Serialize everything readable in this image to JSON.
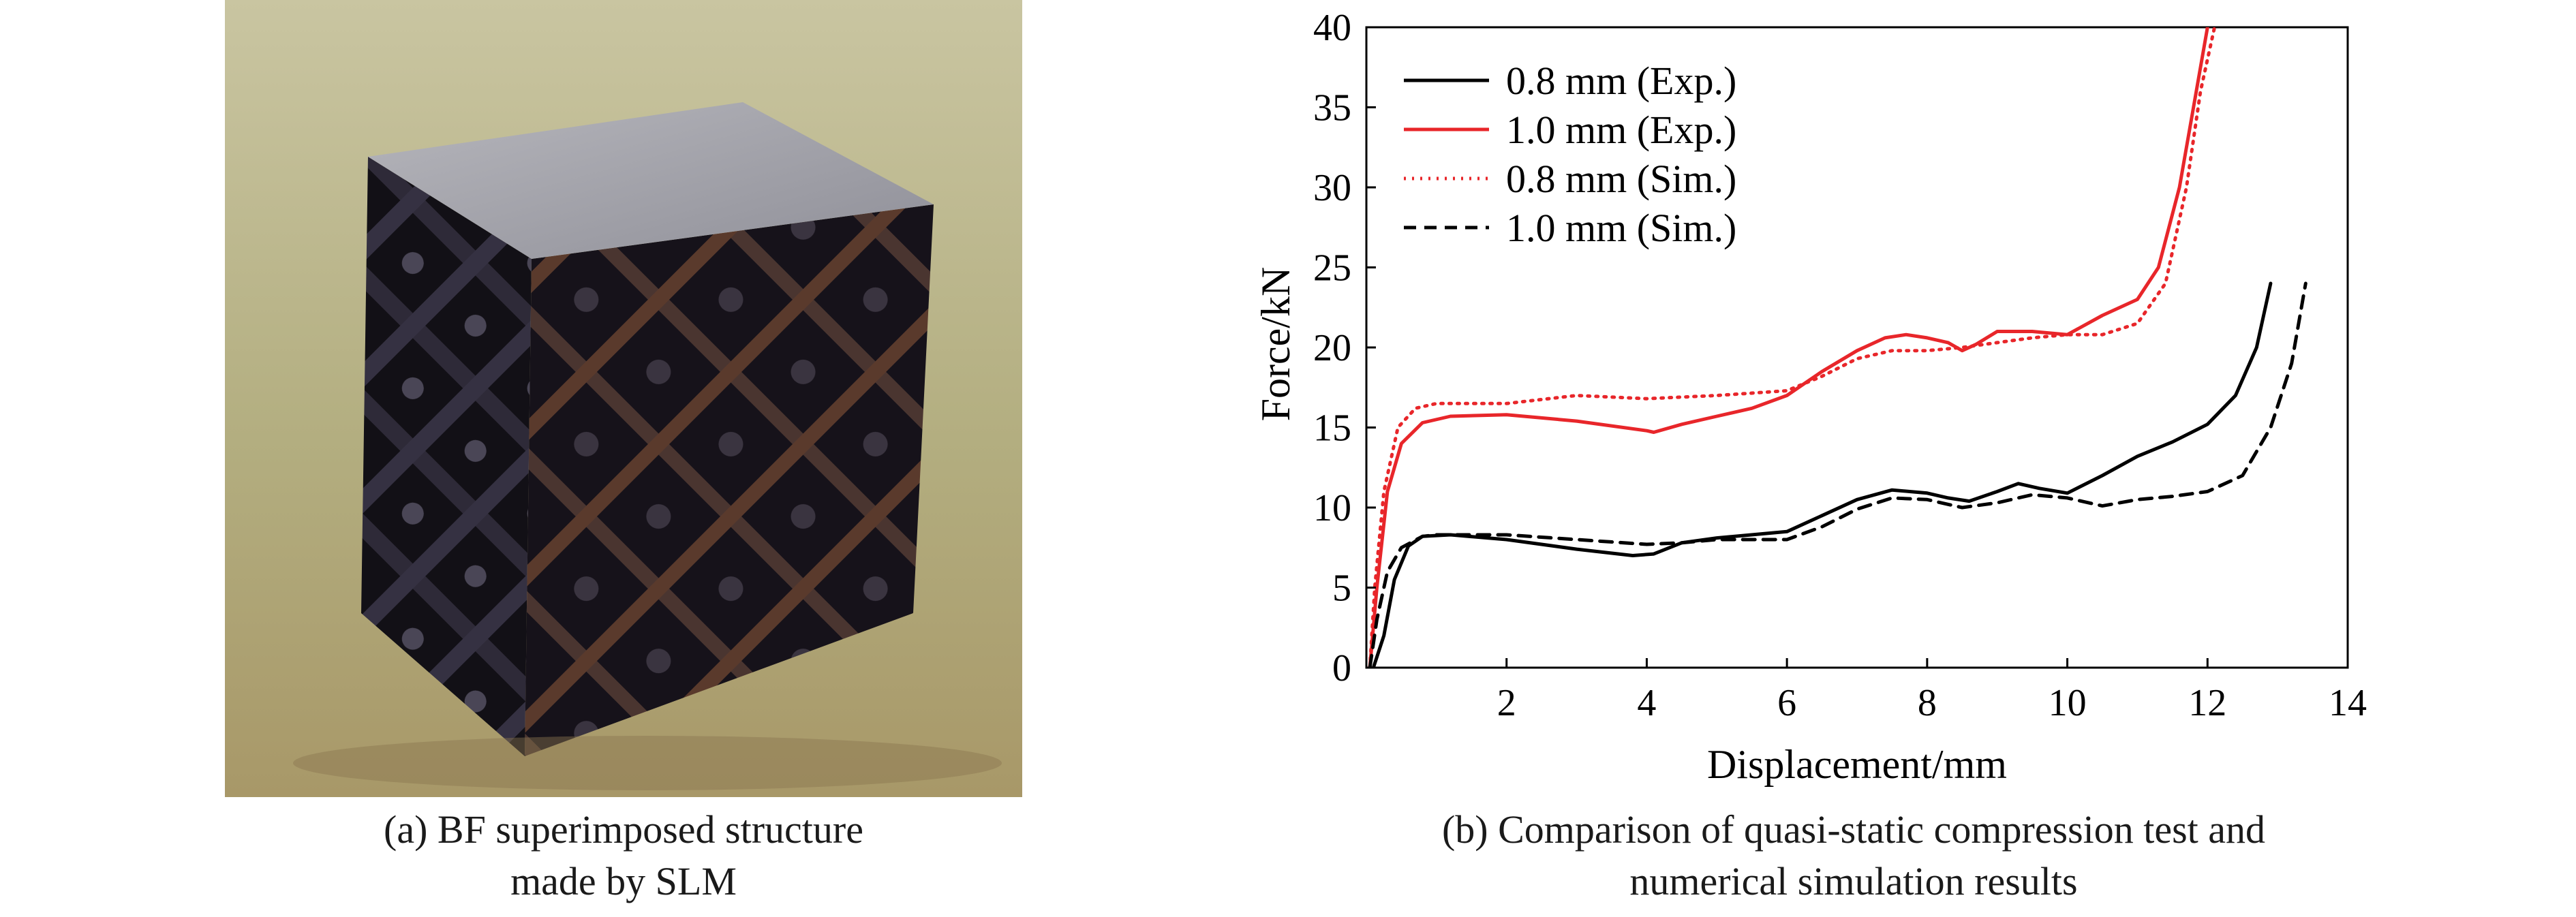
{
  "figure": {
    "caption_a_line1": "(a) BF superimposed structure",
    "caption_a_line2": "made by SLM",
    "caption_b_line1": "(b) Comparison of quasi-static compression test and",
    "caption_b_line2": "numerical simulation results"
  },
  "photo": {
    "subject": "lattice-cube-photo",
    "colors": {
      "background": "#b9b485",
      "metal": "#2b2630",
      "top_face": "#9e9ea6",
      "oxide": "#7a4a35"
    }
  },
  "chart_data": {
    "type": "line",
    "title": "",
    "xlabel": "Displacement/mm",
    "ylabel": "Force/kN",
    "xlim": [
      0,
      14
    ],
    "ylim": [
      0,
      40
    ],
    "xticks": [
      2,
      4,
      6,
      8,
      10,
      12,
      14
    ],
    "yticks": [
      0,
      5,
      10,
      15,
      20,
      25,
      30,
      35,
      40
    ],
    "grid": false,
    "legend_position": "top-left",
    "series": [
      {
        "name": "0.8 mm (Exp.)",
        "color": "#000000",
        "style": "solid",
        "points": [
          [
            0.1,
            0
          ],
          [
            0.25,
            2
          ],
          [
            0.4,
            5.5
          ],
          [
            0.6,
            7.6
          ],
          [
            0.8,
            8.2
          ],
          [
            1.2,
            8.3
          ],
          [
            2,
            8
          ],
          [
            3,
            7.4
          ],
          [
            3.8,
            7
          ],
          [
            4.1,
            7.1
          ],
          [
            4.5,
            7.8
          ],
          [
            5,
            8.1
          ],
          [
            6,
            8.5
          ],
          [
            6.5,
            9.5
          ],
          [
            7,
            10.5
          ],
          [
            7.5,
            11.1
          ],
          [
            8,
            10.9
          ],
          [
            8.3,
            10.6
          ],
          [
            8.6,
            10.4
          ],
          [
            9,
            11
          ],
          [
            9.3,
            11.5
          ],
          [
            9.6,
            11.2
          ],
          [
            10,
            10.9
          ],
          [
            10.5,
            12
          ],
          [
            11,
            13.2
          ],
          [
            11.5,
            14.1
          ],
          [
            12,
            15.2
          ],
          [
            12.4,
            17
          ],
          [
            12.7,
            20
          ],
          [
            12.9,
            24
          ]
        ]
      },
      {
        "name": "1.0 mm (Exp.)",
        "color": "#e8262a",
        "style": "solid",
        "points": [
          [
            0.05,
            0
          ],
          [
            0.15,
            5
          ],
          [
            0.3,
            11
          ],
          [
            0.5,
            14
          ],
          [
            0.8,
            15.3
          ],
          [
            1.2,
            15.7
          ],
          [
            2,
            15.8
          ],
          [
            3,
            15.4
          ],
          [
            4,
            14.8
          ],
          [
            4.1,
            14.7
          ],
          [
            4.5,
            15.2
          ],
          [
            5,
            15.7
          ],
          [
            5.5,
            16.2
          ],
          [
            6,
            17
          ],
          [
            6.5,
            18.5
          ],
          [
            7,
            19.8
          ],
          [
            7.4,
            20.6
          ],
          [
            7.7,
            20.8
          ],
          [
            8,
            20.6
          ],
          [
            8.3,
            20.3
          ],
          [
            8.5,
            19.8
          ],
          [
            8.7,
            20.2
          ],
          [
            9,
            21
          ],
          [
            9.5,
            21
          ],
          [
            10,
            20.8
          ],
          [
            10.5,
            22
          ],
          [
            11,
            23
          ],
          [
            11.3,
            25
          ],
          [
            11.6,
            30
          ],
          [
            11.8,
            35
          ],
          [
            12,
            40
          ]
        ]
      },
      {
        "name": "0.8 mm (Sim.)",
        "color": "#e8262a",
        "style": "dotted",
        "points": [
          [
            0.05,
            0
          ],
          [
            0.12,
            5
          ],
          [
            0.25,
            11
          ],
          [
            0.45,
            15
          ],
          [
            0.7,
            16.2
          ],
          [
            1,
            16.5
          ],
          [
            2,
            16.5
          ],
          [
            3,
            17
          ],
          [
            4,
            16.8
          ],
          [
            5,
            17
          ],
          [
            6,
            17.3
          ],
          [
            6.5,
            18.2
          ],
          [
            7,
            19.3
          ],
          [
            7.5,
            19.8
          ],
          [
            8,
            19.8
          ],
          [
            8.5,
            20
          ],
          [
            9,
            20.3
          ],
          [
            9.5,
            20.6
          ],
          [
            10,
            20.8
          ],
          [
            10.5,
            20.8
          ],
          [
            11,
            21.5
          ],
          [
            11.4,
            24
          ],
          [
            11.7,
            30
          ],
          [
            11.9,
            36
          ],
          [
            12.1,
            40
          ]
        ]
      },
      {
        "name": "1.0 mm (Sim.)",
        "color": "#000000",
        "style": "dashed",
        "points": [
          [
            0.05,
            0
          ],
          [
            0.15,
            3
          ],
          [
            0.3,
            6
          ],
          [
            0.5,
            7.5
          ],
          [
            0.8,
            8.2
          ],
          [
            1,
            8.3
          ],
          [
            2,
            8.3
          ],
          [
            3,
            8
          ],
          [
            4,
            7.7
          ],
          [
            4.5,
            7.8
          ],
          [
            5,
            8
          ],
          [
            6,
            8
          ],
          [
            6.5,
            8.8
          ],
          [
            7,
            9.9
          ],
          [
            7.5,
            10.6
          ],
          [
            8,
            10.5
          ],
          [
            8.5,
            10
          ],
          [
            9,
            10.3
          ],
          [
            9.5,
            10.8
          ],
          [
            10,
            10.6
          ],
          [
            10.5,
            10.1
          ],
          [
            11,
            10.5
          ],
          [
            11.5,
            10.7
          ],
          [
            12,
            11
          ],
          [
            12.5,
            12
          ],
          [
            12.9,
            15
          ],
          [
            13.2,
            19
          ],
          [
            13.4,
            24
          ]
        ]
      }
    ]
  }
}
